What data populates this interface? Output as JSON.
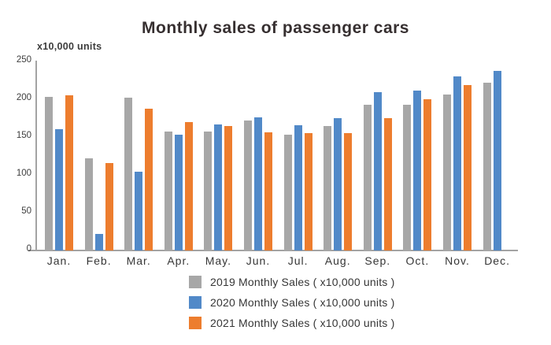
{
  "chart": {
    "title": "Monthly sales of passenger cars",
    "unit_label": "x10,000 units"
  },
  "chart_data": {
    "type": "bar",
    "title": "Monthly sales of passenger cars",
    "xlabel": "",
    "ylabel": "x10,000 units",
    "categories": [
      "Jan.",
      "Feb.",
      "Mar.",
      "Apr.",
      "May.",
      "Jun.",
      "Jul.",
      "Aug.",
      "Sep.",
      "Oct.",
      "Nov.",
      "Dec."
    ],
    "series": [
      {
        "name": "2019 Monthly Sales ( x10,000 units )",
        "color": "#a7a7a7",
        "values": [
          203,
          122,
          202,
          157,
          157,
          172,
          153,
          165,
          193,
          193,
          206,
          222
        ]
      },
      {
        "name": "2020 Monthly Sales ( x10,000 units )",
        "color": "#5189c8",
        "values": [
          160,
          22,
          104,
          153,
          167,
          176,
          166,
          175,
          209,
          211,
          230,
          237
        ]
      },
      {
        "name": "2021 Monthly Sales ( x10,000 units )",
        "color": "#ed7d2e",
        "values": [
          205,
          116,
          188,
          170,
          165,
          156,
          155,
          155,
          175,
          200,
          219,
          null
        ]
      }
    ],
    "ylim": [
      0,
      250
    ],
    "yticks": [
      0,
      50,
      100,
      150,
      200,
      250
    ],
    "grid": false,
    "legend_position": "bottom"
  }
}
